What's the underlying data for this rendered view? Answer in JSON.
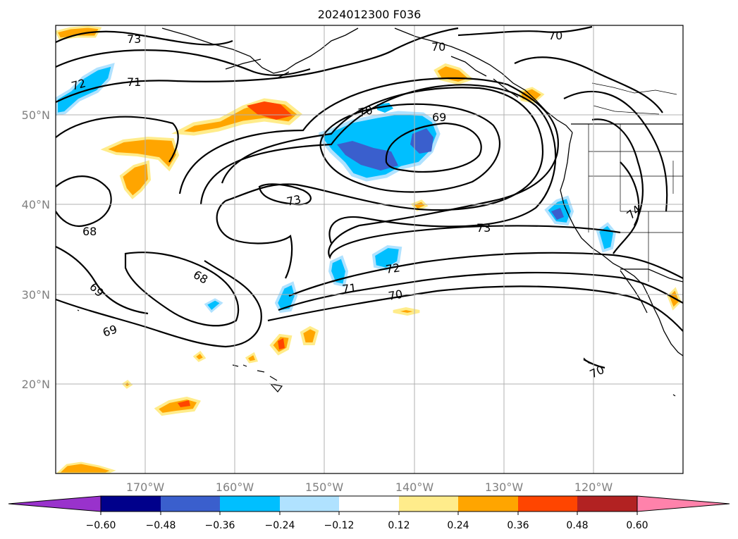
{
  "title": "2024012300 F036",
  "map": {
    "lon_range": [
      -180,
      -110
    ],
    "lat_range": [
      10,
      60
    ],
    "gridlines": true,
    "lat_ticks": [
      {
        "value": 50,
        "label": "50°N"
      },
      {
        "value": 40,
        "label": "40°N"
      },
      {
        "value": 30,
        "label": "30°N"
      },
      {
        "value": 20,
        "label": "20°N"
      }
    ],
    "lon_ticks": [
      {
        "value": -170,
        "label": "170°W"
      },
      {
        "value": -160,
        "label": "160°W"
      },
      {
        "value": -150,
        "label": "150°W"
      },
      {
        "value": -140,
        "label": "140°W"
      },
      {
        "value": -130,
        "label": "130°W"
      },
      {
        "value": -120,
        "label": "120°W"
      }
    ]
  },
  "contour_labels": [
    "73",
    "72",
    "71",
    "68",
    "69",
    "70",
    "70",
    "69",
    "73",
    "73",
    "72",
    "71",
    "70",
    "69",
    "68",
    "70",
    "74",
    "70"
  ],
  "colorbar": {
    "extend": "both",
    "tick_labels": [
      "−0.60",
      "−0.48",
      "−0.36",
      "−0.24",
      "−0.12",
      "0.12",
      "0.24",
      "0.36",
      "0.48",
      "0.60"
    ],
    "colors": {
      "under": "#9932cc",
      "bins": [
        "#00008b",
        "#3a5fcd",
        "#00bfff",
        "#b0e2ff",
        "#ffffff",
        "#ffec8b",
        "#ffa500",
        "#ff4500",
        "#b22222"
      ],
      "over": "#ff82ab"
    }
  }
}
